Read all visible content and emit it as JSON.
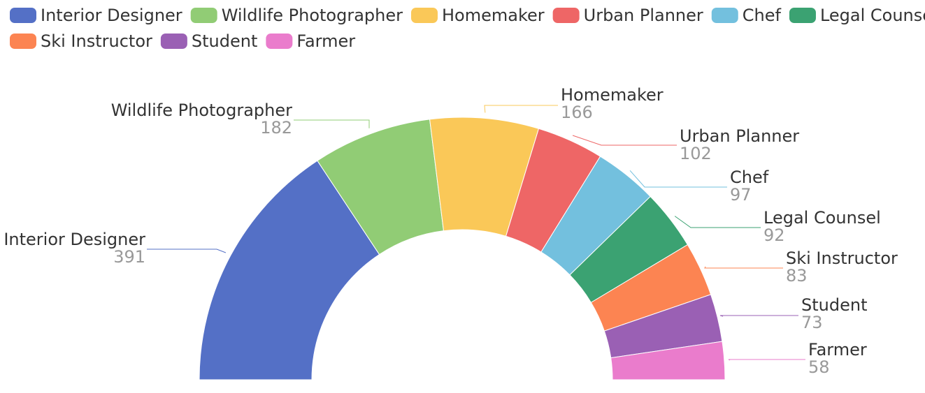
{
  "chart_data": {
    "type": "pie",
    "variant": "half-donut",
    "title": "",
    "legend_position": "top",
    "categories": [
      "Interior Designer",
      "Wildlife Photographer",
      "Homemaker",
      "Urban Planner",
      "Chef",
      "Legal Counsel",
      "Ski Instructor",
      "Student",
      "Farmer"
    ],
    "values": [
      391,
      182,
      166,
      102,
      97,
      92,
      83,
      73,
      58
    ],
    "colors": [
      "#5470c6",
      "#91cc75",
      "#fac858",
      "#ee6666",
      "#73c0de",
      "#3ba272",
      "#fc8452",
      "#9a60b4",
      "#ea7ccc"
    ]
  }
}
